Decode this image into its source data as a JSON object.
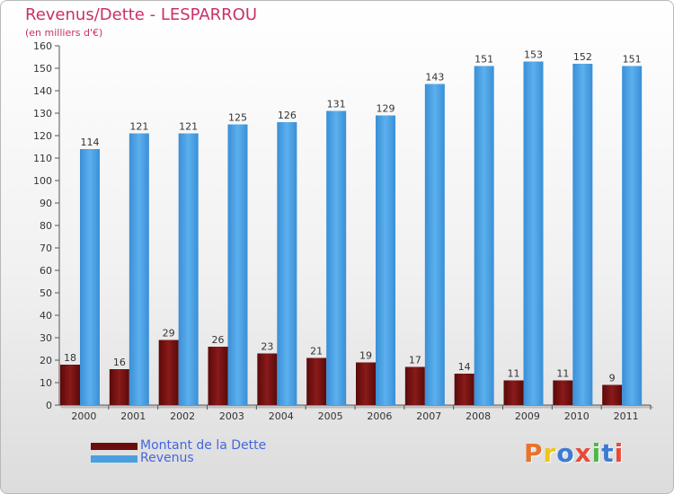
{
  "header": {
    "title": "Revenus/Dette - LESPARROU",
    "subtitle": "(en milliers d'€)"
  },
  "legend": {
    "items": [
      {
        "label": "Montant de la Dette",
        "color": "#7a1212"
      },
      {
        "label": "Revenus",
        "color": "#4a9fe0"
      }
    ]
  },
  "logo": {
    "text": "Proxiti",
    "colors": [
      "#e8732c",
      "#f0c419",
      "#3a7bd5",
      "#e84a3a",
      "#4db848",
      "#3a7bd5",
      "#e84a3a"
    ]
  },
  "chart_data": {
    "type": "bar",
    "title": "Revenus/Dette - LESPARROU",
    "subtitle": "(en milliers d'€)",
    "categories": [
      "2000",
      "2001",
      "2002",
      "2003",
      "2004",
      "2005",
      "2006",
      "2007",
      "2008",
      "2009",
      "2010",
      "2011"
    ],
    "series": [
      {
        "name": "Montant de la Dette",
        "color": "#7a1212",
        "values": [
          18,
          16,
          29,
          26,
          23,
          21,
          19,
          17,
          14,
          11,
          11,
          9
        ]
      },
      {
        "name": "Revenus",
        "color": "#4a9fe0",
        "values": [
          114,
          121,
          121,
          125,
          126,
          131,
          129,
          143,
          151,
          153,
          152,
          151
        ]
      }
    ],
    "ylim": [
      0,
      160
    ],
    "yticks": [
      0,
      10,
      20,
      30,
      40,
      50,
      60,
      70,
      80,
      90,
      100,
      110,
      120,
      130,
      140,
      150,
      160
    ],
    "grid": false,
    "legend_position": "bottom-left"
  }
}
